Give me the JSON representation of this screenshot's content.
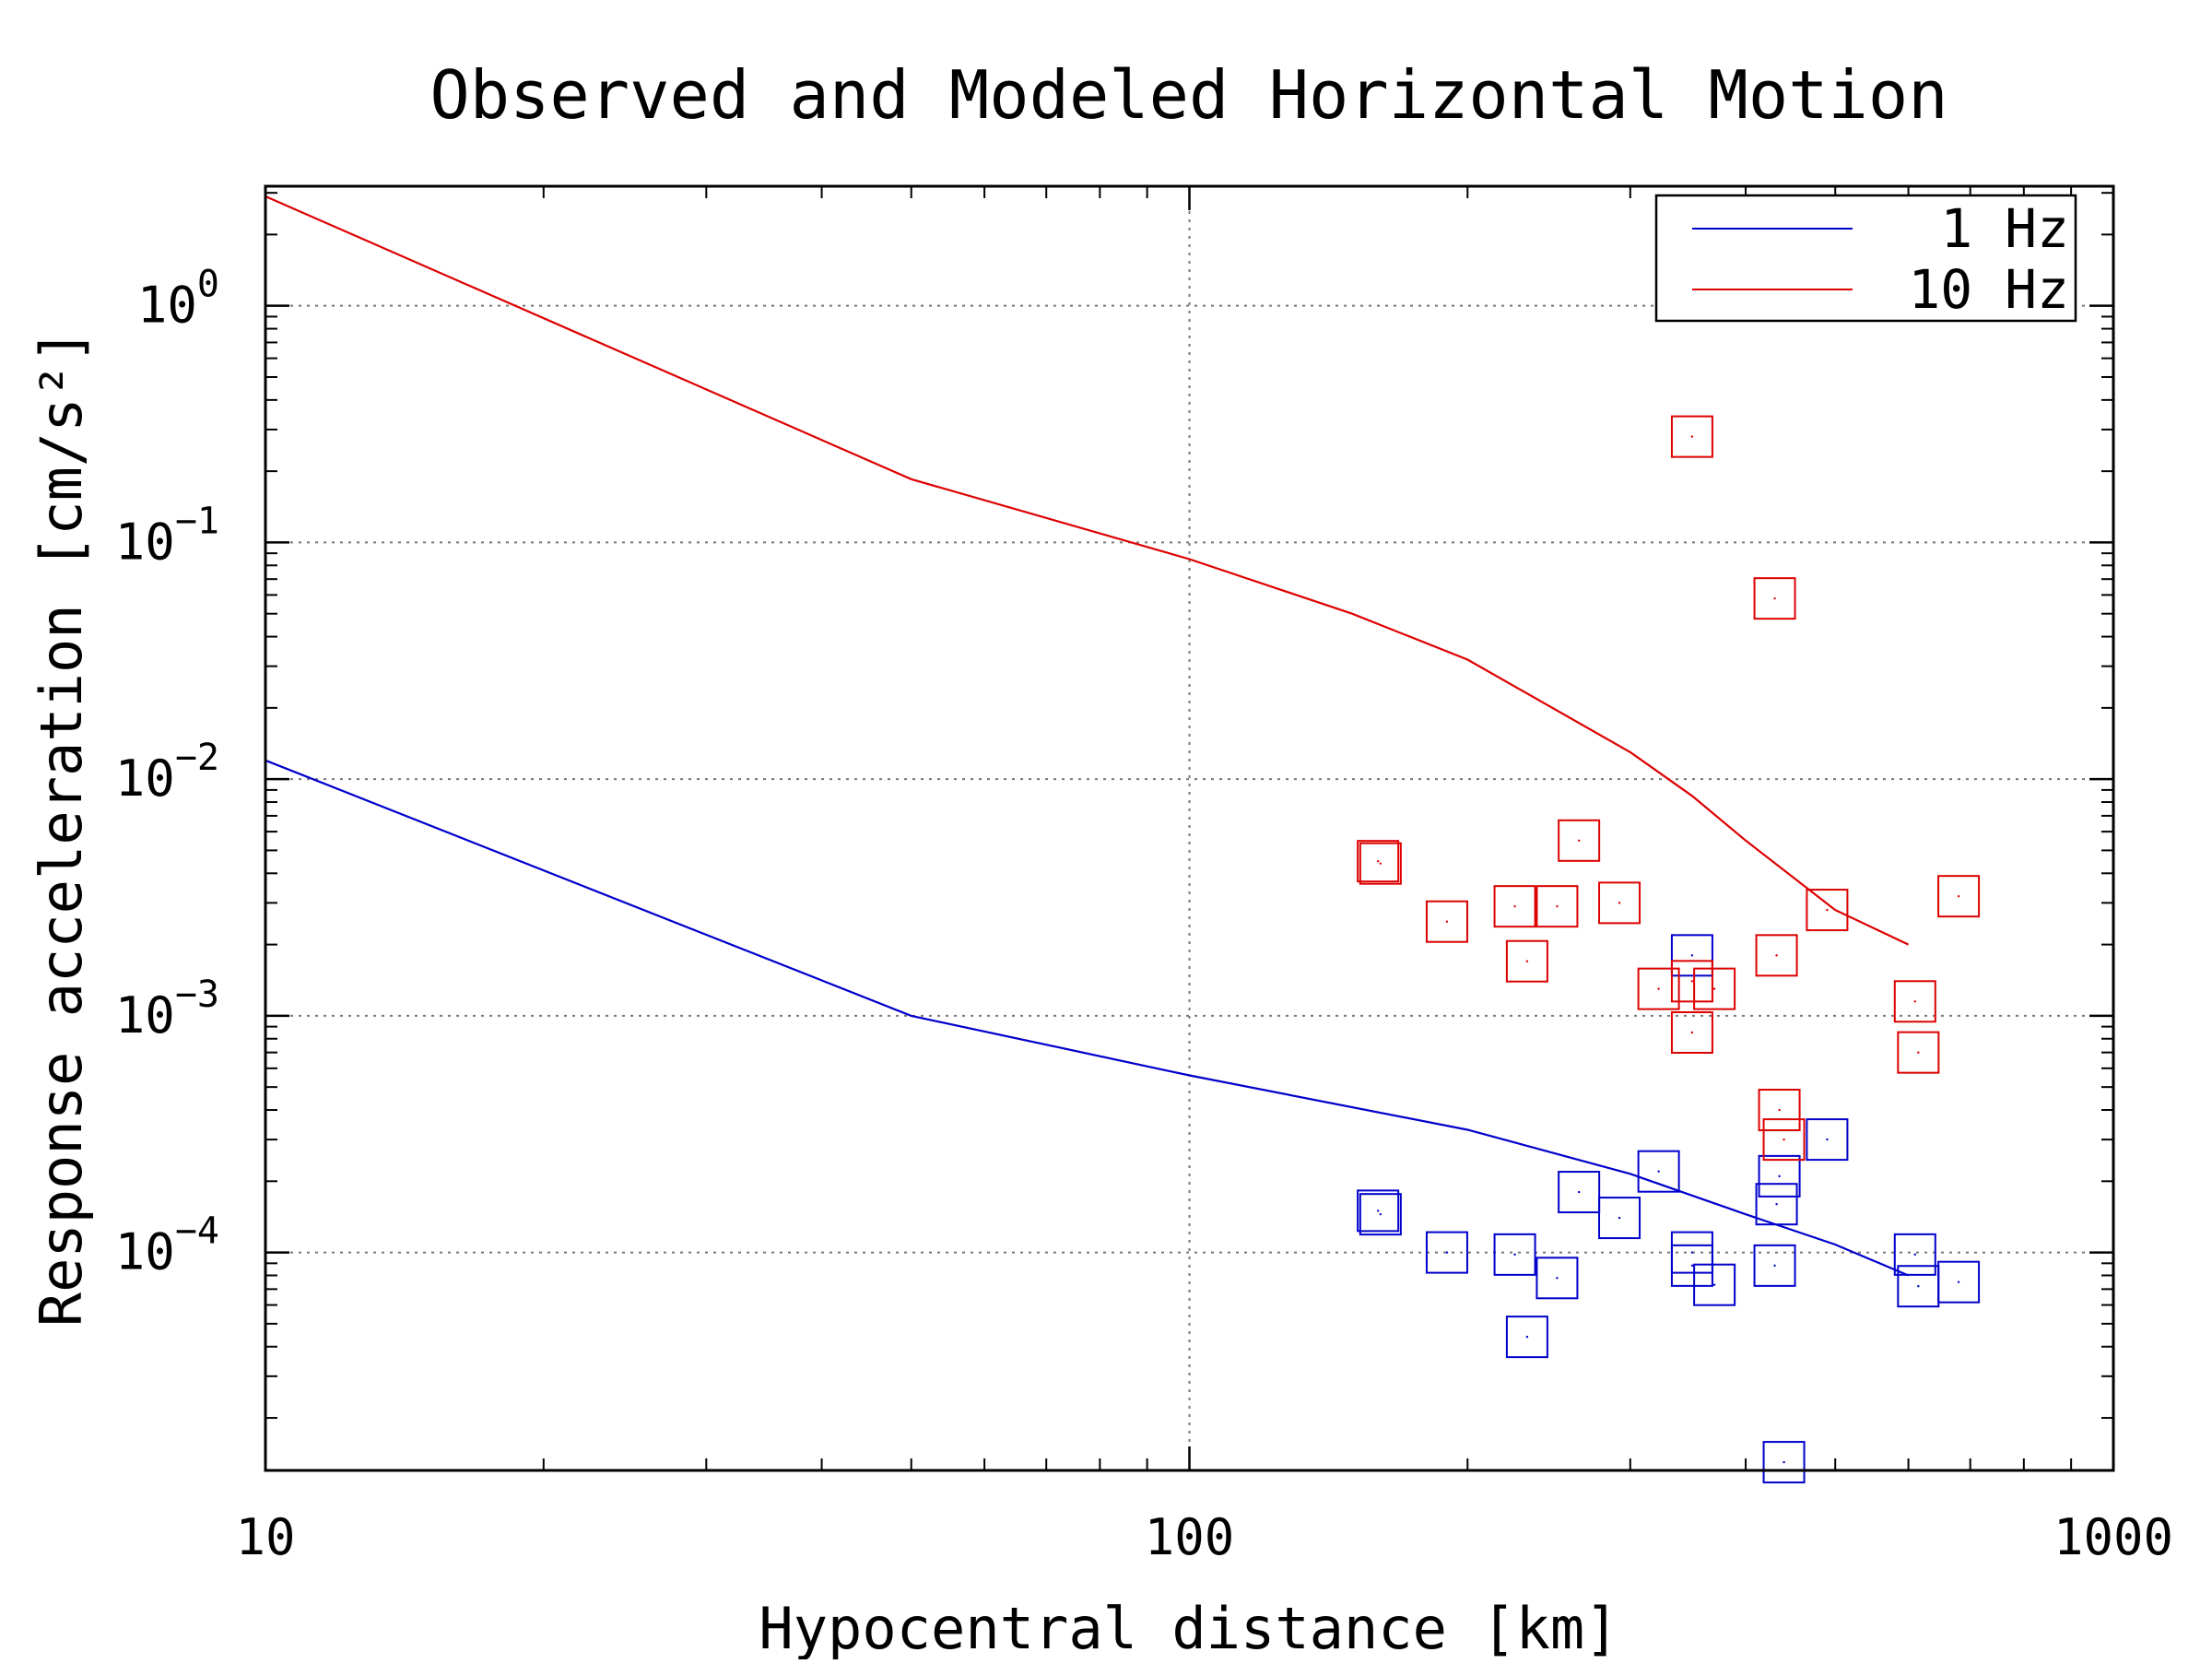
{
  "chart_data": {
    "type": "scatter",
    "title": "Observed and Modeled Horizontal Motion",
    "xlabel": "Hypocentral distance [km]",
    "ylabel": "Response acceleration [cm/s²]",
    "x_scale": "log",
    "y_scale": "log",
    "xlim": [
      10,
      1000
    ],
    "ylim": [
      1.2e-05,
      3.2
    ],
    "x_ticks": [
      {
        "value": 10,
        "label": "10"
      },
      {
        "value": 100,
        "label": "100"
      },
      {
        "value": 1000,
        "label": "1000"
      }
    ],
    "y_ticks": [
      {
        "value": 1,
        "base": "10",
        "exp": "0"
      },
      {
        "value": 0.1,
        "base": "10",
        "exp": "−1"
      },
      {
        "value": 0.01,
        "base": "10",
        "exp": "−2"
      },
      {
        "value": 0.001,
        "base": "10",
        "exp": "−3"
      },
      {
        "value": 0.0001,
        "base": "10",
        "exp": "−4"
      }
    ],
    "grid": true,
    "legend_position": "top-right",
    "model_lines": [
      {
        "name": "1 Hz",
        "color": "#0000cc",
        "x": [
          10,
          50,
          100,
          200,
          300,
          400,
          500,
          600
        ],
        "y": [
          0.012,
          0.001,
          0.00056,
          0.00033,
          0.000215,
          0.000145,
          0.000108,
          8e-05
        ]
      },
      {
        "name": "10 Hz",
        "color": "#dd0000",
        "x": [
          10,
          50,
          100,
          150,
          200,
          300,
          350,
          400,
          500,
          600
        ],
        "y": [
          2.9,
          0.185,
          0.085,
          0.05,
          0.032,
          0.013,
          0.0085,
          0.0055,
          0.0028,
          0.002
        ]
      }
    ],
    "observations": [
      {
        "name": "1 Hz",
        "color": "#0000cc",
        "points": [
          [
            160,
            0.00015
          ],
          [
            161,
            0.000145
          ],
          [
            190,
            0.0001
          ],
          [
            225,
            9.8e-05
          ],
          [
            232,
            4.4e-05
          ],
          [
            250,
            7.8e-05
          ],
          [
            264,
            0.00018
          ],
          [
            292,
            0.00014
          ],
          [
            322,
            0.00022
          ],
          [
            350,
            0.0018
          ],
          [
            350,
            0.0001
          ],
          [
            350,
            8.8e-05
          ],
          [
            370,
            7.3e-05
          ],
          [
            430,
            8.8e-05
          ],
          [
            432,
            0.00016
          ],
          [
            435,
            0.00021
          ],
          [
            440,
            1.3e-05
          ],
          [
            490,
            0.0003
          ],
          [
            610,
            9.8e-05
          ],
          [
            615,
            7.2e-05
          ],
          [
            680,
            7.5e-05
          ]
        ]
      },
      {
        "name": "10 Hz",
        "color": "#dd0000",
        "points": [
          [
            160,
            0.0045
          ],
          [
            161,
            0.0044
          ],
          [
            190,
            0.0025
          ],
          [
            225,
            0.0029
          ],
          [
            232,
            0.0017
          ],
          [
            250,
            0.0029
          ],
          [
            264,
            0.0055
          ],
          [
            292,
            0.003
          ],
          [
            322,
            0.0013
          ],
          [
            350,
            0.28
          ],
          [
            350,
            0.0014
          ],
          [
            350,
            0.00085
          ],
          [
            370,
            0.0013
          ],
          [
            430,
            0.058
          ],
          [
            432,
            0.0018
          ],
          [
            435,
            0.0004
          ],
          [
            440,
            0.0003
          ],
          [
            490,
            0.0028
          ],
          [
            610,
            0.00115
          ],
          [
            615,
            0.0007
          ],
          [
            680,
            0.0032
          ]
        ]
      }
    ]
  },
  "legend": {
    "items": [
      {
        "label": "1 Hz",
        "color": "#0000cc"
      },
      {
        "label": "10 Hz",
        "color": "#dd0000"
      }
    ]
  }
}
